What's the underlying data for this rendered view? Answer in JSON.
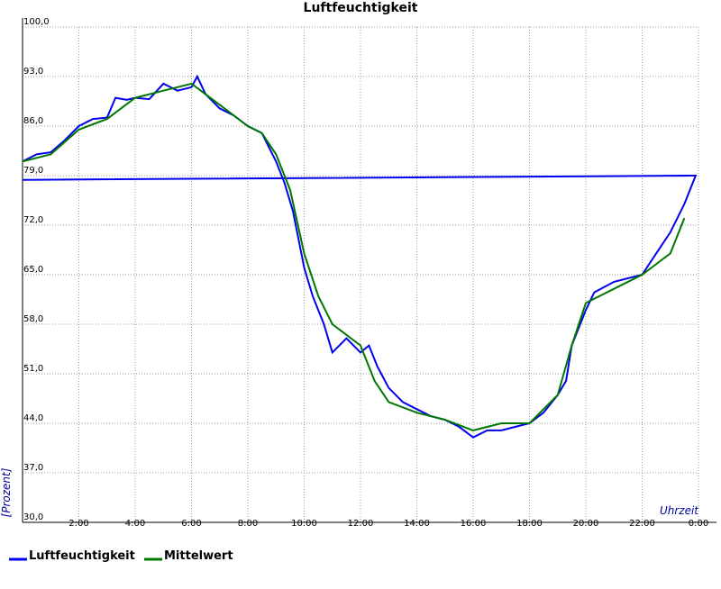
{
  "chart_data": {
    "type": "line",
    "title": "Luftfeuchtigkeit",
    "x_label": "Uhrzeit",
    "y_label": "[Prozent]",
    "xlim": [
      0,
      24
    ],
    "ylim": [
      30,
      100
    ],
    "xticks": [
      {
        "value": 2,
        "label": "2:00"
      },
      {
        "value": 4,
        "label": "4:00"
      },
      {
        "value": 6,
        "label": "6:00"
      },
      {
        "value": 8,
        "label": "8:00"
      },
      {
        "value": 10,
        "label": "10:00"
      },
      {
        "value": 12,
        "label": "12:00"
      },
      {
        "value": 14,
        "label": "14:00"
      },
      {
        "value": 16,
        "label": "16:00"
      },
      {
        "value": 18,
        "label": "18:00"
      },
      {
        "value": 20,
        "label": "20:00"
      },
      {
        "value": 22,
        "label": "22:00"
      },
      {
        "value": 24,
        "label": "0:00"
      }
    ],
    "yticks": [
      {
        "value": 30,
        "label": "30,0"
      },
      {
        "value": 37,
        "label": "37,0"
      },
      {
        "value": 44,
        "label": "44,0"
      },
      {
        "value": 51,
        "label": "51,0"
      },
      {
        "value": 58,
        "label": "58,0"
      },
      {
        "value": 65,
        "label": "65,0"
      },
      {
        "value": 72,
        "label": "72,0"
      },
      {
        "value": 79,
        "label": "79,0"
      },
      {
        "value": 86,
        "label": "86,0"
      },
      {
        "value": 93,
        "label": "93,0"
      },
      {
        "value": 100,
        "label": "100,0"
      }
    ],
    "grid": true,
    "series": [
      {
        "name": "Luftfeuchtigkeit",
        "color": "#0000ee",
        "x": [
          0,
          0.5,
          1,
          1.5,
          2,
          2.5,
          3,
          3.3,
          3.7,
          4,
          4.5,
          5,
          5.5,
          6,
          6.2,
          6.5,
          7,
          7.5,
          8,
          8.5,
          9,
          9.3,
          9.6,
          10,
          10.3,
          10.7,
          11,
          11.5,
          12,
          12.3,
          12.6,
          13,
          13.5,
          14,
          14.5,
          15,
          15.5,
          16,
          16.5,
          17,
          17.5,
          18,
          18.5,
          19,
          19.3,
          19.5,
          20,
          20.3,
          21,
          22,
          22.5,
          23,
          23.5,
          23.9,
          0
        ],
        "values": [
          81,
          82,
          82.3,
          84,
          86,
          87,
          87.2,
          90,
          89.7,
          90,
          89.8,
          92,
          91,
          91.5,
          93,
          90.5,
          88.5,
          87.5,
          86,
          85,
          81,
          78,
          74,
          66,
          62,
          58,
          54,
          56,
          54,
          55,
          52,
          49,
          47,
          46,
          45,
          44.5,
          43.5,
          42,
          43,
          43,
          43.5,
          44,
          45.5,
          48,
          50,
          55,
          60,
          62.5,
          64,
          65,
          68,
          71,
          75,
          79,
          78.4
        ]
      },
      {
        "name": "Mittelwert",
        "color": "#007700",
        "x": [
          0,
          1,
          2,
          3,
          4,
          5,
          6,
          7,
          8,
          8.5,
          9,
          9.5,
          10,
          10.5,
          11,
          12,
          12.5,
          13,
          14,
          15,
          16,
          17,
          18,
          19,
          19.5,
          20,
          21,
          22,
          23,
          23.5
        ],
        "values": [
          81,
          82,
          85.5,
          87,
          90,
          91,
          92,
          89,
          86,
          85,
          82,
          77,
          68,
          62,
          58,
          55,
          50,
          47,
          45.5,
          44.5,
          43,
          44,
          44,
          48,
          55,
          61,
          63,
          65,
          68,
          73
        ]
      }
    ]
  }
}
